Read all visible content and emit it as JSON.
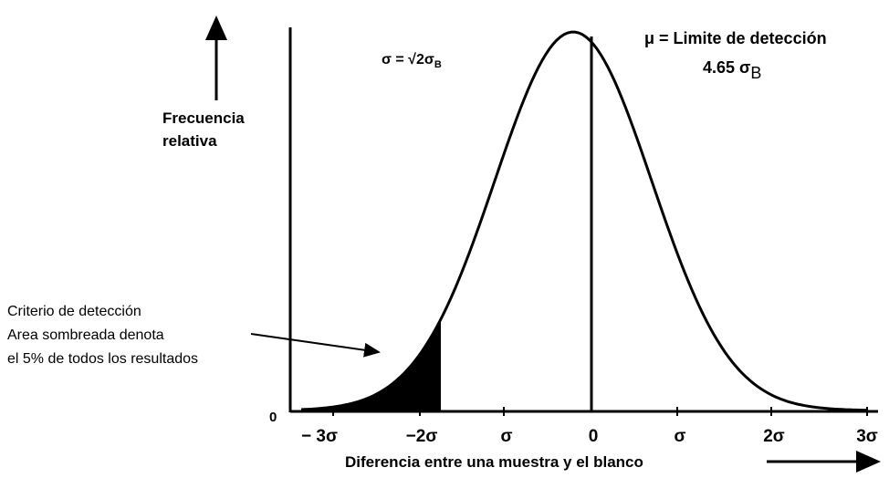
{
  "axis": {
    "y_label": [
      "Frecuencia",
      "relativa"
    ],
    "origin": "0",
    "x_labels": [
      "− 3σ",
      "−2σ",
      "σ",
      "0",
      "σ",
      "2σ",
      "3σ"
    ],
    "x_title": "Diferencia entre una muestra y el blanco"
  },
  "formula": {
    "main": "σ = √2σ",
    "sub": "B"
  },
  "detection_limit": {
    "line1": "μ = Limite de detección",
    "line2": "4.65  σ",
    "sub": "B"
  },
  "criterion": [
    "Criterio de detección",
    "Area sombreada denota",
    "el 5% de todos los resultados"
  ]
}
